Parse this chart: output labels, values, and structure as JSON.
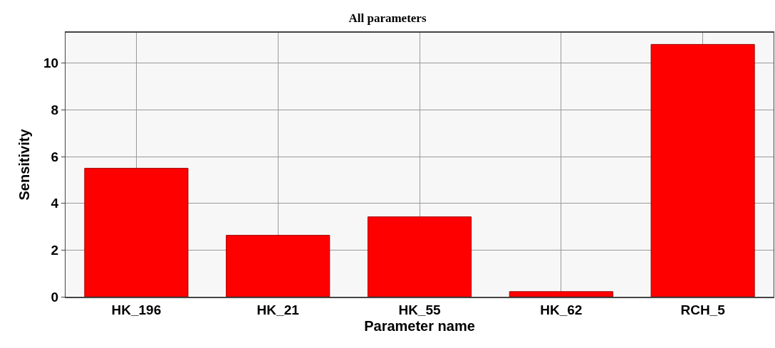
{
  "chart_data": {
    "type": "bar",
    "title": "All parameters",
    "xlabel": "Parameter name",
    "ylabel": "Sensitivity",
    "categories": [
      "HK_196",
      "HK_21",
      "HK_55",
      "HK_62",
      "RCH_5"
    ],
    "values": [
      5.5,
      2.63,
      3.42,
      0.22,
      10.8
    ],
    "color": "#ff0000",
    "ylim": [
      0,
      11.3
    ],
    "yticks": [
      0,
      2,
      4,
      6,
      8,
      10
    ],
    "grid": true
  }
}
